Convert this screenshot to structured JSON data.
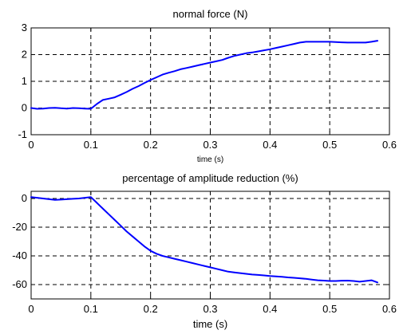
{
  "chart_data": [
    {
      "type": "line",
      "title": "normal force (N)",
      "xlabel": "time (s)",
      "ylabel": "",
      "xlim": [
        0,
        0.6
      ],
      "ylim": [
        -1,
        3
      ],
      "xticks": [
        "0",
        "0.1",
        "0.2",
        "0.3",
        "0.4",
        "0.5",
        "0.6"
      ],
      "yticks": [
        "-1",
        "0",
        "1",
        "2",
        "3"
      ],
      "grid": true,
      "color": "#0000ff",
      "series": [
        {
          "x": [
            0,
            0.01,
            0.02,
            0.03,
            0.04,
            0.05,
            0.06,
            0.07,
            0.08,
            0.09,
            0.1,
            0.11,
            0.12,
            0.13,
            0.14,
            0.15,
            0.16,
            0.17,
            0.18,
            0.19,
            0.2,
            0.21,
            0.22,
            0.23,
            0.24,
            0.25,
            0.26,
            0.27,
            0.28,
            0.29,
            0.3,
            0.31,
            0.32,
            0.33,
            0.34,
            0.35,
            0.36,
            0.37,
            0.38,
            0.39,
            0.4,
            0.41,
            0.42,
            0.43,
            0.44,
            0.45,
            0.46,
            0.47,
            0.48,
            0.49,
            0.5,
            0.51,
            0.52,
            0.53,
            0.54,
            0.55,
            0.56,
            0.57,
            0.58
          ],
          "y": [
            0.0,
            -0.03,
            -0.02,
            0.0,
            0.01,
            -0.01,
            -0.02,
            0.0,
            -0.01,
            -0.02,
            -0.03,
            0.15,
            0.3,
            0.35,
            0.4,
            0.5,
            0.6,
            0.72,
            0.82,
            0.94,
            1.05,
            1.15,
            1.25,
            1.32,
            1.38,
            1.45,
            1.5,
            1.55,
            1.6,
            1.65,
            1.7,
            1.75,
            1.8,
            1.88,
            1.95,
            2.0,
            2.05,
            2.08,
            2.12,
            2.16,
            2.2,
            2.25,
            2.3,
            2.35,
            2.4,
            2.45,
            2.48,
            2.48,
            2.48,
            2.48,
            2.48,
            2.47,
            2.46,
            2.45,
            2.45,
            2.45,
            2.45,
            2.48,
            2.52
          ]
        }
      ]
    },
    {
      "type": "line",
      "title": "percentage of amplitude reduction (%)",
      "xlabel": "time (s)",
      "ylabel": "",
      "xlim": [
        0,
        0.6
      ],
      "ylim": [
        -70,
        5
      ],
      "xticks": [
        "0",
        "0.1",
        "0.2",
        "0.3",
        "0.4",
        "0.5",
        "0.6"
      ],
      "yticks": [
        "-60",
        "-40",
        "-20",
        "0"
      ],
      "ytick_values": [
        -60,
        -40,
        -20,
        0
      ],
      "grid": true,
      "color": "#0000ff",
      "series": [
        {
          "x": [
            0,
            0.01,
            0.02,
            0.03,
            0.04,
            0.05,
            0.06,
            0.07,
            0.08,
            0.09,
            0.1,
            0.11,
            0.12,
            0.13,
            0.14,
            0.15,
            0.16,
            0.17,
            0.18,
            0.19,
            0.2,
            0.21,
            0.22,
            0.23,
            0.24,
            0.25,
            0.26,
            0.27,
            0.28,
            0.29,
            0.3,
            0.31,
            0.32,
            0.33,
            0.34,
            0.35,
            0.36,
            0.37,
            0.38,
            0.39,
            0.4,
            0.41,
            0.42,
            0.43,
            0.44,
            0.45,
            0.46,
            0.47,
            0.48,
            0.49,
            0.5,
            0.51,
            0.52,
            0.53,
            0.54,
            0.55,
            0.56,
            0.57,
            0.58
          ],
          "y": [
            1.0,
            0.5,
            0.0,
            -0.5,
            -1.0,
            -0.8,
            -0.5,
            -0.2,
            0.0,
            0.5,
            1.0,
            -3.0,
            -7.0,
            -11.0,
            -15.0,
            -19.0,
            -23.0,
            -26.5,
            -30.0,
            -33.5,
            -36.5,
            -38.5,
            -40.0,
            -41.0,
            -42.0,
            -43.0,
            -44.0,
            -45.0,
            -46.0,
            -47.0,
            -48.0,
            -49.0,
            -50.0,
            -51.0,
            -51.5,
            -52.0,
            -52.5,
            -53.0,
            -53.3,
            -53.6,
            -54.0,
            -54.3,
            -54.6,
            -55.0,
            -55.3,
            -55.6,
            -56.0,
            -56.5,
            -57.0,
            -57.2,
            -57.5,
            -57.5,
            -57.3,
            -57.2,
            -57.5,
            -58.0,
            -57.5,
            -57.0,
            -58.5
          ]
        }
      ]
    }
  ]
}
